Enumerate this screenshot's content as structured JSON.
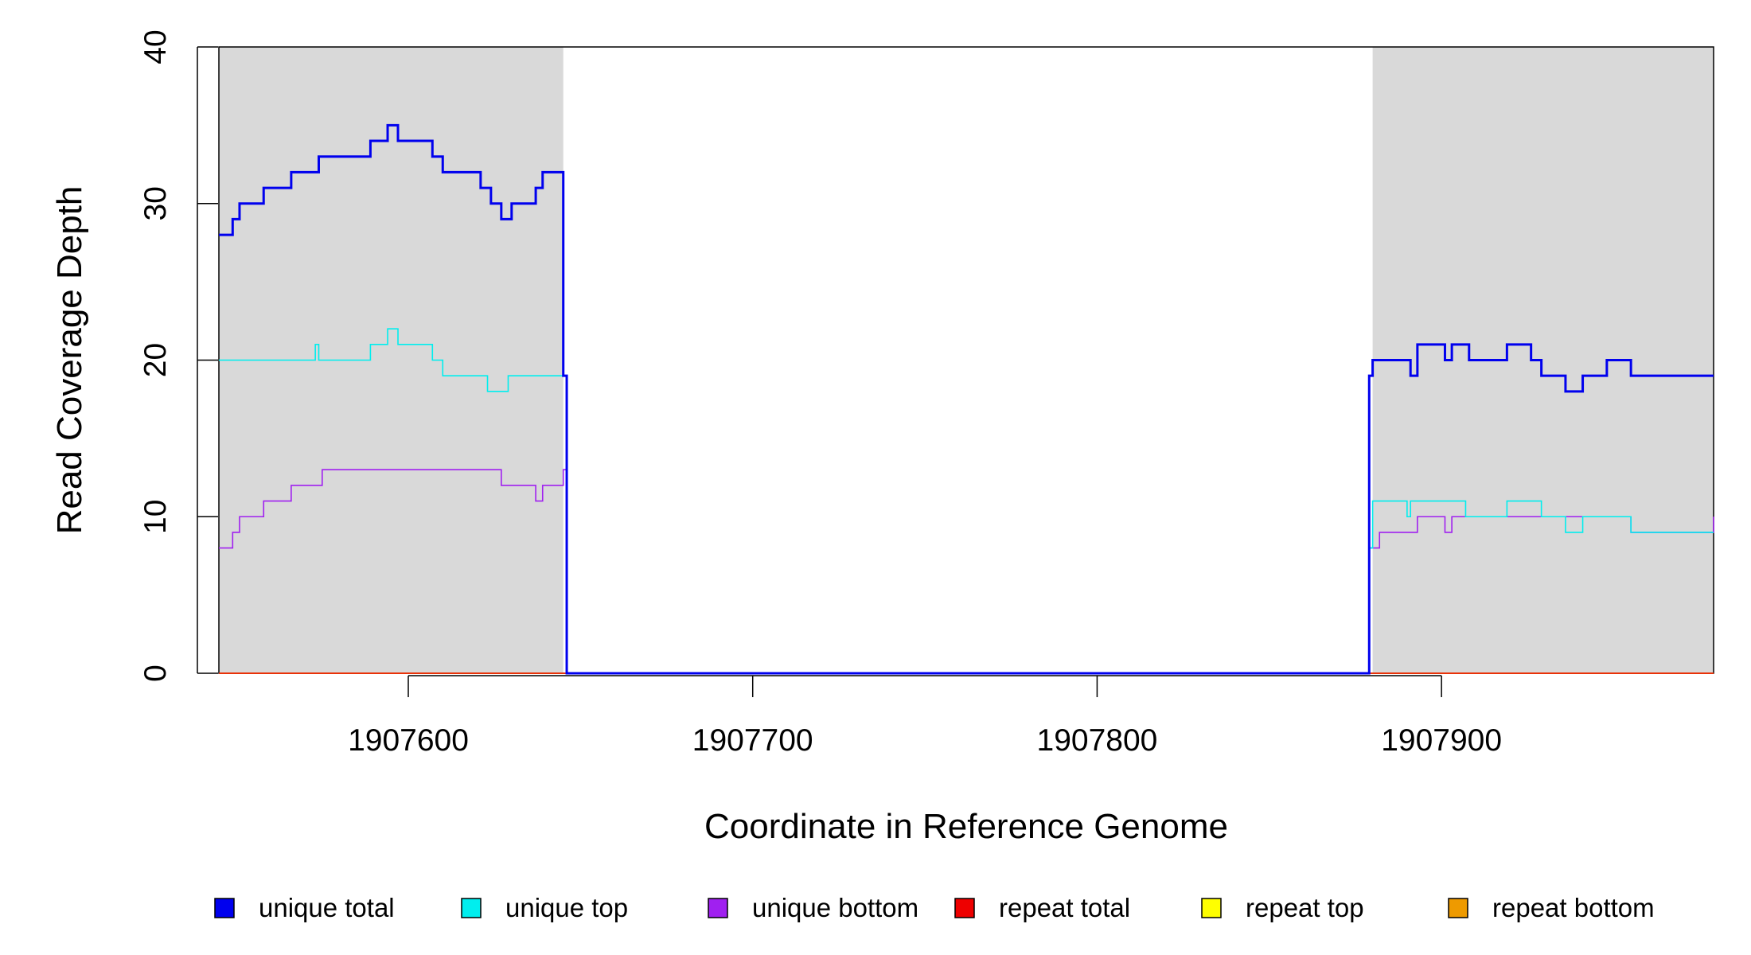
{
  "chart_data": {
    "type": "line",
    "xlabel": "Coordinate in Reference Genome",
    "ylabel": "Read Coverage Depth",
    "xlim": [
      1907545,
      1907979
    ],
    "ylim": [
      0,
      40
    ],
    "x_ticks": [
      1907600,
      1907700,
      1907800,
      1907900
    ],
    "x_tick_labels": [
      "1907600",
      "1907700",
      "1907800",
      "1907900"
    ],
    "y_ticks": [
      0,
      10,
      20,
      30,
      40
    ],
    "y_tick_labels": [
      "0",
      "10",
      "20",
      "30",
      "40"
    ],
    "shaded_regions": [
      {
        "x0": 1907545,
        "x1": 1907645,
        "color": "#d9d9d9"
      },
      {
        "x0": 1907880,
        "x1": 1907979,
        "color": "#d9d9d9"
      }
    ],
    "grid": false,
    "legend_position": "bottom",
    "series": [
      {
        "name": "unique total",
        "color": "#0000ee",
        "x": [
          1907545,
          1907549,
          1907551,
          1907558,
          1907566,
          1907574,
          1907589,
          1907594,
          1907597,
          1907607,
          1907610,
          1907621,
          1907624,
          1907627,
          1907630,
          1907637,
          1907639,
          1907645,
          1907646,
          1907879,
          1907880,
          1907882,
          1907891,
          1907893,
          1907901,
          1907903,
          1907908,
          1907919,
          1907926,
          1907929,
          1907936,
          1907941,
          1907948,
          1907955,
          1907979
        ],
        "values": [
          28,
          29,
          30,
          31,
          32,
          33,
          34,
          35,
          34,
          33,
          32,
          31,
          30,
          29,
          30,
          31,
          32,
          19,
          0,
          19,
          20,
          20,
          19,
          21,
          20,
          21,
          20,
          21,
          20,
          19,
          18,
          19,
          20,
          19,
          19
        ]
      },
      {
        "name": "unique top",
        "color": "#00eeee",
        "x": [
          1907545,
          1907573,
          1907574,
          1907589,
          1907594,
          1907597,
          1907607,
          1907610,
          1907623,
          1907629,
          1907645,
          1907646,
          1907879,
          1907880,
          1907890,
          1907891,
          1907907,
          1907919,
          1907929,
          1907936,
          1907941,
          1907948,
          1907955,
          1907979
        ],
        "values": [
          20,
          21,
          20,
          21,
          22,
          21,
          20,
          19,
          18,
          19,
          19,
          0,
          8,
          11,
          10,
          11,
          10,
          11,
          10,
          9,
          10,
          10,
          9,
          9
        ]
      },
      {
        "name": "unique bottom",
        "color": "#a020f0",
        "x": [
          1907545,
          1907549,
          1907551,
          1907558,
          1907566,
          1907575,
          1907621,
          1907627,
          1907637,
          1907639,
          1907645,
          1907646,
          1907879,
          1907880,
          1907882,
          1907893,
          1907901,
          1907903,
          1907926,
          1907955,
          1907979
        ],
        "values": [
          8,
          9,
          10,
          11,
          12,
          13,
          13,
          12,
          11,
          12,
          13,
          0,
          8,
          8,
          9,
          10,
          9,
          10,
          10,
          9,
          10
        ]
      },
      {
        "name": "repeat total",
        "color": "#ee0000",
        "x": [
          1907545,
          1907979
        ],
        "values": [
          0,
          0
        ]
      },
      {
        "name": "repeat top",
        "color": "#ffff00",
        "x": [
          1907545,
          1907979
        ],
        "values": [
          0,
          0
        ]
      },
      {
        "name": "repeat bottom",
        "color": "#ee9a00",
        "x": [
          1907545,
          1907979
        ],
        "values": [
          0,
          0
        ]
      }
    ]
  }
}
